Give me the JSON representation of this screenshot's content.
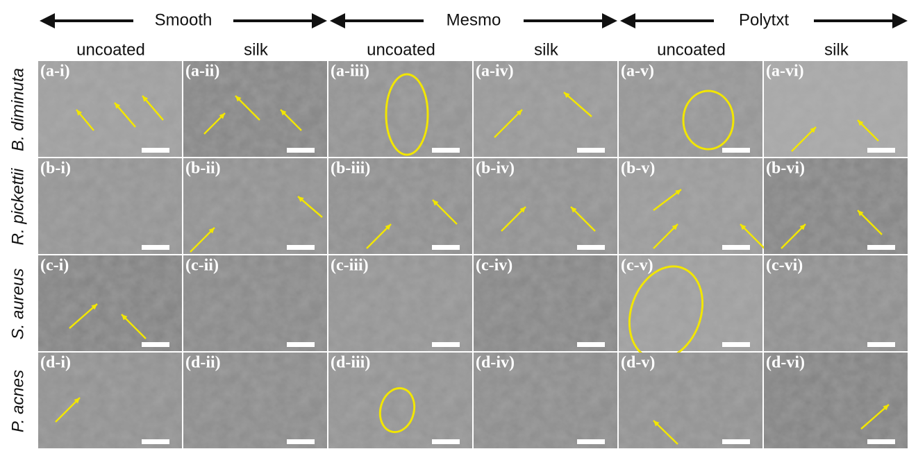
{
  "groups": [
    "Smooth",
    "Mesmo",
    "Polytxt"
  ],
  "subheaders": [
    "uncoated",
    "silk",
    "uncoated",
    "silk",
    "uncoated",
    "silk"
  ],
  "rows": [
    {
      "organism": "B. diminuta",
      "panels": [
        "(a-i)",
        "(a-ii)",
        "(a-iii)",
        "(a-iv)",
        "(a-v)",
        "(a-vi)"
      ]
    },
    {
      "organism": "R. pickettii",
      "panels": [
        "(b-i)",
        "(b-ii)",
        "(b-iii)",
        "(b-iv)",
        "(b-v)",
        "(b-vi)"
      ]
    },
    {
      "organism": "S. aureus",
      "panels": [
        "(c-i)",
        "(c-ii)",
        "(c-iii)",
        "(c-iv)",
        "(c-v)",
        "(c-vi)"
      ]
    },
    {
      "organism": "P. acnes",
      "panels": [
        "(d-i)",
        "(d-ii)",
        "(d-iii)",
        "(d-iv)",
        "(d-v)",
        "(d-vi)"
      ]
    }
  ]
}
